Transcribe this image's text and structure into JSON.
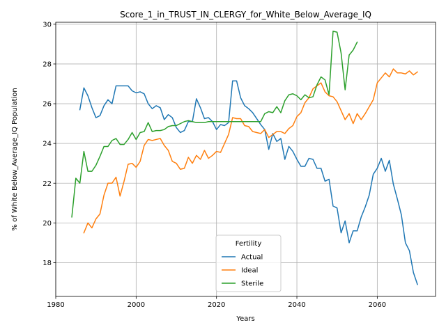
{
  "chart_data": {
    "type": "line",
    "title": "Score_1_in_TRUST_IN_CLERGY_for_White_Below_Average_IQ",
    "xlabel": "Years",
    "ylabel": "% of White Below_Average_IQ Population",
    "xlim": [
      1980,
      2074.5
    ],
    "ylim": [
      16.3,
      30.1
    ],
    "xticks": [
      1980,
      2000,
      2020,
      2040,
      2060
    ],
    "yticks": [
      18,
      20,
      22,
      24,
      26,
      28,
      30
    ],
    "grid": true,
    "legend": {
      "title": "Fertility",
      "placement": "lower-center"
    },
    "series": [
      {
        "name": "Actual",
        "color": "#1f77b4",
        "x": [
          1986,
          1987,
          1988,
          1989,
          1990,
          1991,
          1992,
          1993,
          1994,
          1995,
          1996,
          1997,
          1998,
          1999,
          2000,
          2001,
          2002,
          2003,
          2004,
          2005,
          2006,
          2007,
          2008,
          2009,
          2010,
          2011,
          2012,
          2013,
          2014,
          2015,
          2016,
          2017,
          2018,
          2019,
          2020,
          2021,
          2022,
          2023,
          2024,
          2025,
          2026,
          2027,
          2028,
          2029,
          2030,
          2031,
          2032,
          2033,
          2034,
          2035,
          2036,
          2037,
          2038,
          2039,
          2040,
          2041,
          2042,
          2043,
          2044,
          2045,
          2046,
          2047,
          2048,
          2049,
          2050,
          2051,
          2052,
          2053,
          2054,
          2055,
          2056,
          2057,
          2058,
          2059,
          2060,
          2061,
          2062,
          2063,
          2064,
          2065,
          2066,
          2067,
          2068,
          2069,
          2070
        ],
        "y": [
          25.7,
          26.8,
          26.4,
          25.8,
          25.3,
          25.4,
          25.9,
          26.2,
          26.0,
          26.9,
          26.9,
          26.9,
          26.9,
          26.65,
          26.55,
          26.6,
          26.5,
          26.0,
          25.75,
          25.9,
          25.8,
          25.2,
          25.45,
          25.3,
          24.8,
          24.55,
          24.65,
          25.1,
          25.1,
          26.25,
          25.8,
          25.25,
          25.3,
          25.1,
          24.7,
          24.95,
          24.9,
          25.05,
          27.15,
          27.15,
          26.3,
          25.9,
          25.75,
          25.55,
          25.25,
          24.95,
          24.7,
          23.7,
          24.5,
          24.1,
          24.25,
          23.2,
          23.85,
          23.6,
          23.2,
          22.85,
          22.85,
          23.25,
          23.2,
          22.75,
          22.75,
          22.1,
          22.2,
          20.85,
          20.75,
          19.5,
          20.1,
          19.0,
          19.6,
          19.6,
          20.3,
          20.8,
          21.4,
          22.45,
          22.75,
          23.25,
          22.6,
          23.15,
          21.95,
          21.2,
          20.4,
          19.0,
          18.6,
          17.5,
          16.9
        ]
      },
      {
        "name": "Ideal",
        "color": "#ff7f0e",
        "x": [
          1987,
          1988,
          1989,
          1990,
          1991,
          1992,
          1993,
          1994,
          1995,
          1996,
          1997,
          1998,
          1999,
          2000,
          2001,
          2002,
          2003,
          2004,
          2005,
          2006,
          2007,
          2008,
          2009,
          2010,
          2011,
          2012,
          2013,
          2014,
          2015,
          2016,
          2017,
          2018,
          2019,
          2020,
          2021,
          2022,
          2023,
          2024,
          2025,
          2026,
          2027,
          2028,
          2029,
          2030,
          2031,
          2032,
          2033,
          2034,
          2035,
          2036,
          2037,
          2038,
          2039,
          2040,
          2041,
          2042,
          2043,
          2044,
          2045,
          2046,
          2047,
          2048,
          2049,
          2050,
          2051,
          2052,
          2053,
          2054,
          2055,
          2056,
          2057,
          2058,
          2059,
          2060,
          2061,
          2062,
          2063,
          2064,
          2065,
          2066,
          2067,
          2068,
          2069,
          2070
        ],
        "y": [
          19.5,
          20.0,
          19.75,
          20.2,
          20.45,
          21.4,
          22.0,
          22.0,
          22.3,
          21.35,
          22.1,
          22.95,
          23.0,
          22.8,
          23.1,
          23.9,
          24.2,
          24.15,
          24.2,
          24.25,
          23.9,
          23.65,
          23.1,
          23.0,
          22.7,
          22.75,
          23.3,
          23.0,
          23.4,
          23.2,
          23.65,
          23.25,
          23.4,
          23.6,
          23.55,
          24.0,
          24.45,
          25.3,
          25.25,
          25.25,
          24.9,
          24.85,
          24.6,
          24.55,
          24.5,
          24.7,
          24.3,
          24.45,
          24.6,
          24.6,
          24.5,
          24.75,
          24.9,
          25.35,
          25.55,
          26.05,
          26.3,
          26.75,
          26.9,
          27.05,
          26.6,
          26.4,
          26.35,
          26.1,
          25.65,
          25.2,
          25.5,
          25.0,
          25.5,
          25.2,
          25.5,
          25.85,
          26.2,
          27.05,
          27.3,
          27.55,
          27.35,
          27.75,
          27.55,
          27.55,
          27.5,
          27.65,
          27.45,
          27.6
        ]
      },
      {
        "name": "Sterile",
        "color": "#2ca02c",
        "x": [
          1984,
          1985,
          1986,
          1987,
          1988,
          1989,
          1990,
          1991,
          1992,
          1993,
          1994,
          1995,
          1996,
          1997,
          1998,
          1999,
          2000,
          2001,
          2002,
          2003,
          2004,
          2005,
          2006,
          2007,
          2008,
          2009,
          2010,
          2011,
          2012,
          2013,
          2014,
          2015,
          2016,
          2017,
          2018,
          2019,
          2020,
          2021,
          2022,
          2023,
          2024,
          2025,
          2026,
          2027,
          2028,
          2029,
          2030,
          2031,
          2032,
          2033,
          2034,
          2035,
          2036,
          2037,
          2038,
          2039,
          2040,
          2041,
          2042,
          2043,
          2044,
          2045,
          2046,
          2047,
          2048,
          2049,
          2050,
          2051,
          2052,
          2053,
          2054,
          2055
        ],
        "y": [
          20.3,
          22.25,
          22.0,
          23.6,
          22.6,
          22.6,
          22.9,
          23.35,
          23.85,
          23.85,
          24.15,
          24.25,
          23.95,
          23.95,
          24.2,
          24.55,
          24.2,
          24.55,
          24.6,
          25.05,
          24.6,
          24.65,
          24.65,
          24.7,
          24.85,
          24.9,
          24.9,
          25.0,
          25.1,
          25.15,
          25.1,
          25.05,
          25.05,
          25.05,
          25.1,
          25.1,
          25.1,
          25.1,
          25.1,
          25.1,
          25.1,
          25.1,
          25.1,
          25.1,
          25.1,
          25.1,
          25.1,
          25.1,
          25.5,
          25.6,
          25.55,
          25.85,
          25.55,
          26.15,
          26.45,
          26.5,
          26.4,
          26.2,
          26.45,
          26.3,
          26.35,
          26.95,
          27.35,
          27.2,
          26.45,
          29.65,
          29.6,
          28.55,
          26.7,
          28.45,
          28.7,
          29.1
        ]
      }
    ]
  }
}
